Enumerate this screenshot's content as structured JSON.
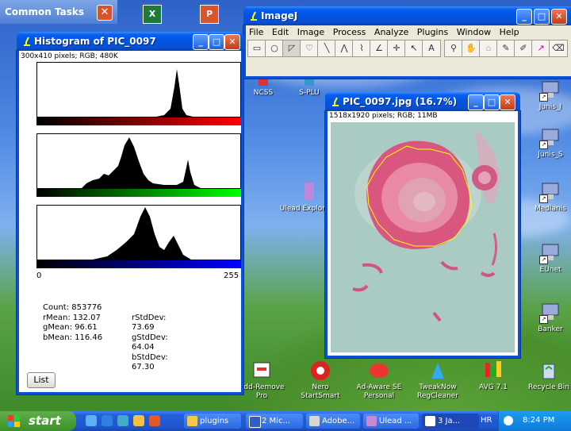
{
  "common_tasks": {
    "title": "Common Tasks"
  },
  "histogram_window": {
    "title": "Histogram of PIC_0097",
    "info": "300x410 pixels; RGB; 480K",
    "axis_min": "0",
    "axis_max": "255",
    "stats": {
      "count": "Count: 853776",
      "rmean": "rMean: 132.07",
      "gmean": "gMean: 96.61",
      "bmean": "bMean: 116.46",
      "rstd": "rStdDev: 73.69",
      "gstd": "gStdDev: 64.04",
      "bstd": "bStdDev: 67.30"
    },
    "list_button": "List"
  },
  "imagej_window": {
    "title": "ImageJ",
    "menu": [
      "File",
      "Edit",
      "Image",
      "Process",
      "Analyze",
      "Plugins",
      "Window",
      "Help"
    ]
  },
  "image_window": {
    "title": "PIC_0097.jpg (16.7%)",
    "info": "1518x1920 pixels; RGB; 11MB"
  },
  "desktop_icons": [
    {
      "label": "NCSS",
      "name": "ncss"
    },
    {
      "label": "S-PLU",
      "name": "s-plus"
    },
    {
      "label": "Junis_I",
      "name": "junis-i"
    },
    {
      "label": "Junis_S",
      "name": "junis-s"
    },
    {
      "label": "Medlanis",
      "name": "medlanis"
    },
    {
      "label": "EUnet",
      "name": "eunet"
    },
    {
      "label": "Banker",
      "name": "banker"
    },
    {
      "label": "Ulead Explore",
      "name": "ulead-explore"
    },
    {
      "label": "Add-Remove Pro",
      "name": "add-remove-pro"
    },
    {
      "label": "Nero StartSmart",
      "name": "nero-startsmart"
    },
    {
      "label": "Ad-Aware SE Personal",
      "name": "ad-aware"
    },
    {
      "label": "TweakNow RegCleaner",
      "name": "tweaknow"
    },
    {
      "label": "AVG 7.1",
      "name": "avg"
    },
    {
      "label": "Recycle Bin",
      "name": "recycle-bin"
    }
  ],
  "taskbar": {
    "start": "start",
    "tasks": [
      "plugins",
      "2 Mic...",
      "Adobe...",
      "Ulead ...",
      "3 Ja..."
    ],
    "lang": "HR",
    "clock": "8:24 PM"
  }
}
